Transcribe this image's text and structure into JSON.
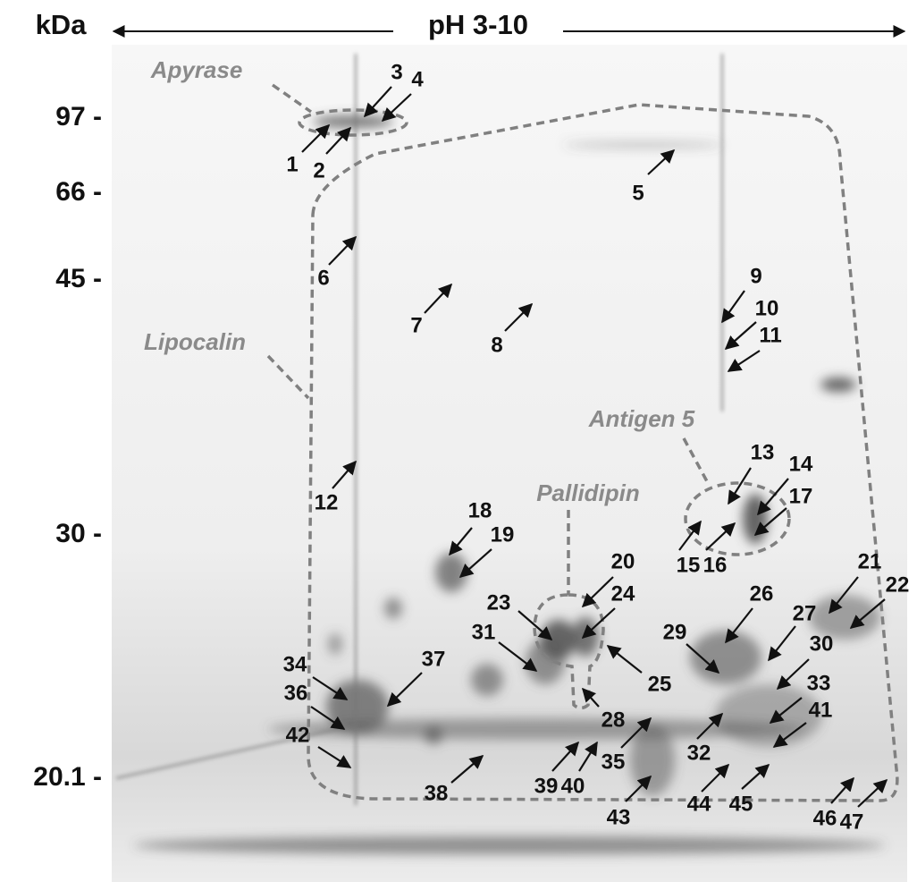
{
  "header": {
    "y_axis_label": "kDa",
    "x_axis_label": "pH 3-10"
  },
  "mw_markers": [
    "97 -",
    "66 -",
    "45 -",
    "30 -",
    "20.1 -"
  ],
  "regions": [
    "Apyrase",
    "Lipocalin",
    "Antigen 5",
    "Pallidipin"
  ],
  "spots": [
    "1",
    "2",
    "3",
    "4",
    "5",
    "6",
    "7",
    "8",
    "9",
    "10",
    "11",
    "12",
    "13",
    "14",
    "15",
    "16",
    "17",
    "18",
    "19",
    "20",
    "21",
    "22",
    "23",
    "24",
    "25",
    "26",
    "27",
    "28",
    "29",
    "30",
    "31",
    "32",
    "33",
    "34",
    "35",
    "36",
    "37",
    "38",
    "39",
    "40",
    "41",
    "42",
    "43",
    "44",
    "45",
    "46",
    "47"
  ]
}
